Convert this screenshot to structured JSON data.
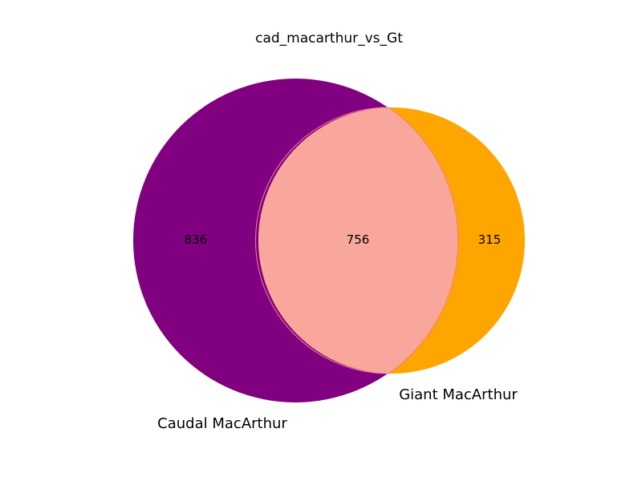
{
  "title": "cad_macarthur_vs_Gt",
  "sets": [
    {
      "label": "Caudal MacArthur",
      "color": "#800080"
    },
    {
      "label": "Giant MacArthur",
      "color": "#ffa500"
    }
  ],
  "intersection_color": "#f9a79c",
  "intersection_edge_color": "#f07fa0",
  "counts": {
    "only_a": "836",
    "both": "756",
    "only_b": "315"
  },
  "chart_data": {
    "type": "venn",
    "title": "cad_macarthur_vs_Gt",
    "sets": [
      "Caudal MacArthur",
      "Giant MacArthur"
    ],
    "regions": [
      {
        "sets": [
          "Caudal MacArthur"
        ],
        "value": 836
      },
      {
        "sets": [
          "Caudal MacArthur",
          "Giant MacArthur"
        ],
        "value": 756
      },
      {
        "sets": [
          "Giant MacArthur"
        ],
        "value": 315
      }
    ]
  }
}
